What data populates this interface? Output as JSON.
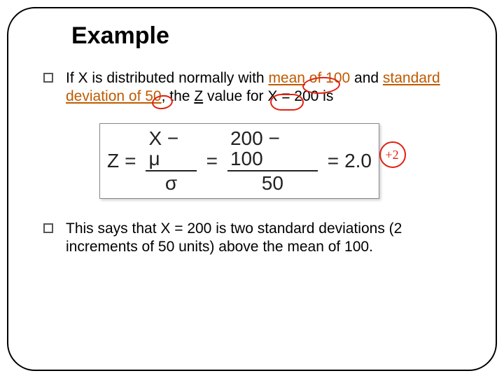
{
  "title": "Example",
  "bullets": [
    {
      "pre": "If  X  is distributed normally with ",
      "orange_parts": {
        "mean_label": "mean",
        "mean_of": " of 100",
        "and": " and ",
        "sd_label": "standard deviation of 50",
        "post_sd": ", the  ",
        "z_label": "Z",
        "z_post": "  value for  X = 200"
      },
      "tail": " is"
    },
    {
      "text": "This says that  X = 200  is two standard deviations (2 increments of 50 units) above the mean of 100."
    }
  ],
  "formula": {
    "lhs": "Z",
    "frac1_num": "X − μ",
    "frac1_den": "σ",
    "frac2_num": "200 − 100",
    "frac2_den": "50",
    "result": "2.0",
    "colors": {
      "text": "#222222",
      "border": "#888888"
    }
  },
  "annotations": {
    "color": "#e02010",
    "handwritten": "+2"
  }
}
